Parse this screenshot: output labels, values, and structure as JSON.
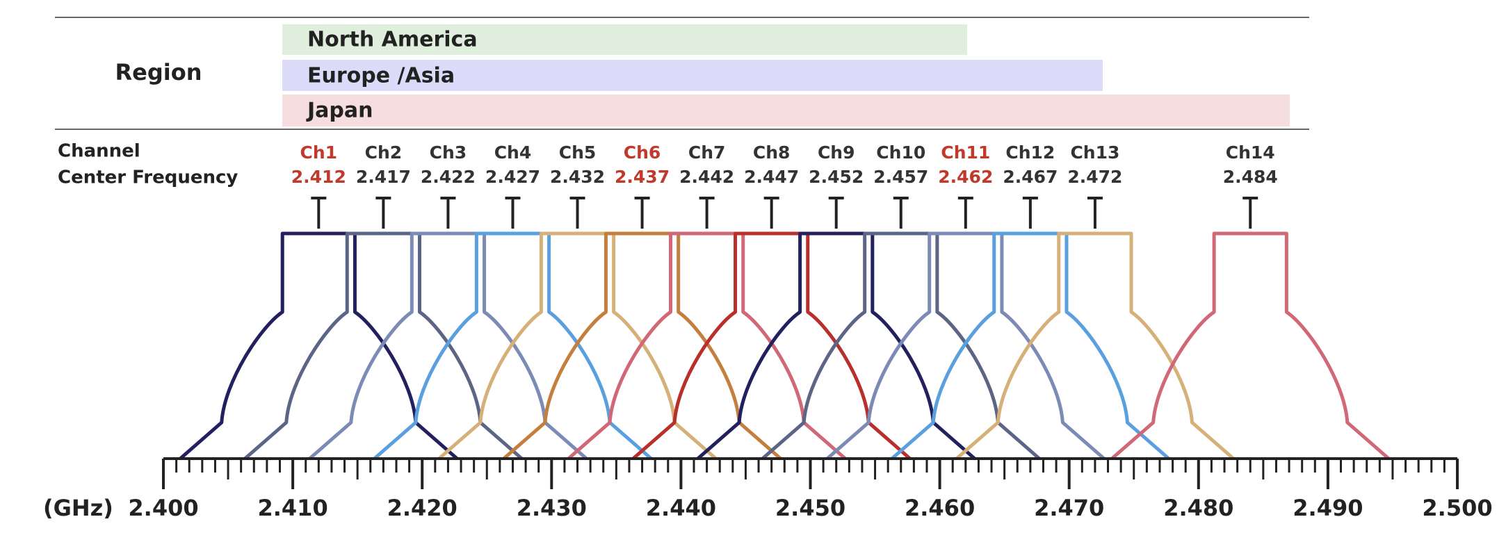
{
  "region": {
    "label": "Region",
    "bars": [
      {
        "name": "North America",
        "color": "#dfeedd"
      },
      {
        "name": "Europe /Asia",
        "color": "#dcdcfa"
      },
      {
        "name": "Japan",
        "color": "#f6dde0"
      }
    ]
  },
  "channel_label": "Channel",
  "frequency_label": "Center Frequency",
  "channels": [
    {
      "name": "Ch1",
      "freq": 2.412,
      "color": "#23205f",
      "label_color": "#c0392b"
    },
    {
      "name": "Ch2",
      "freq": 2.417,
      "color": "#5c6585",
      "label_color": "#333333"
    },
    {
      "name": "Ch3",
      "freq": 2.422,
      "color": "#7b8bb5",
      "label_color": "#333333"
    },
    {
      "name": "Ch4",
      "freq": 2.427,
      "color": "#5aa0df",
      "label_color": "#333333"
    },
    {
      "name": "Ch5",
      "freq": 2.432,
      "color": "#d6b079",
      "label_color": "#333333"
    },
    {
      "name": "Ch6",
      "freq": 2.437,
      "color": "#c47f3e",
      "label_color": "#c0392b"
    },
    {
      "name": "Ch7",
      "freq": 2.442,
      "color": "#d06878",
      "label_color": "#333333"
    },
    {
      "name": "Ch8",
      "freq": 2.447,
      "color": "#b8302c",
      "label_color": "#333333"
    },
    {
      "name": "Ch9",
      "freq": 2.452,
      "color": "#23205f",
      "label_color": "#333333"
    },
    {
      "name": "Ch10",
      "freq": 2.457,
      "color": "#5c6585",
      "label_color": "#333333"
    },
    {
      "name": "Ch11",
      "freq": 2.462,
      "color": "#7b8bb5",
      "label_color": "#c0392b"
    },
    {
      "name": "Ch12",
      "freq": 2.467,
      "color": "#5aa0df",
      "label_color": "#333333"
    },
    {
      "name": "Ch13",
      "freq": 2.472,
      "color": "#d6b079",
      "label_color": "#333333"
    },
    {
      "name": "Ch14",
      "freq": 2.484,
      "color": "#d06878",
      "label_color": "#333333"
    }
  ],
  "axis": {
    "unit": "(GHz)",
    "xlim": [
      2.4,
      2.5
    ],
    "xticks": [
      {
        "value": 2.4,
        "label": "2.400"
      },
      {
        "value": 2.41,
        "label": "2.410"
      },
      {
        "value": 2.42,
        "label": "2.420"
      },
      {
        "value": 2.43,
        "label": "2.430"
      },
      {
        "value": 2.44,
        "label": "2.440"
      },
      {
        "value": 2.45,
        "label": "2.450"
      },
      {
        "value": 2.46,
        "label": "2.460"
      },
      {
        "value": 2.47,
        "label": "2.470"
      },
      {
        "value": 2.48,
        "label": "2.480"
      },
      {
        "value": 2.49,
        "label": "2.490"
      },
      {
        "value": 2.5,
        "label": "2.500"
      }
    ]
  }
}
